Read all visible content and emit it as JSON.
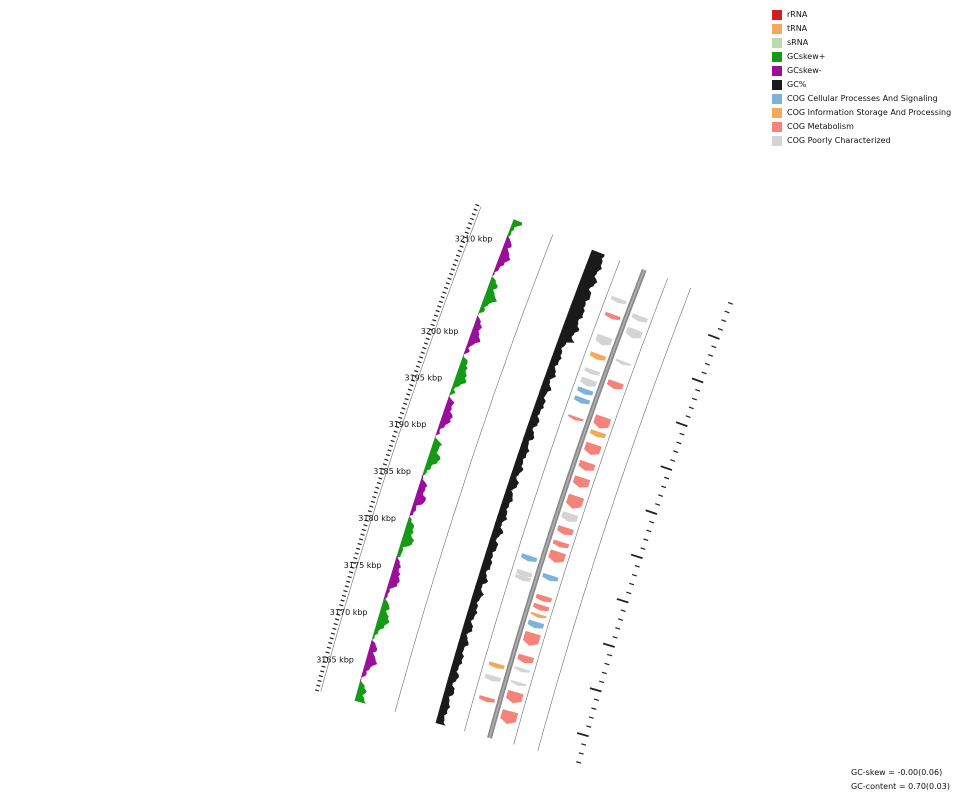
{
  "legend": {
    "items": [
      {
        "label": "rRNA",
        "color": "#d11f1f"
      },
      {
        "label": "tRNA",
        "color": "#f4a85a"
      },
      {
        "label": "sRNA",
        "color": "#b8dcb0"
      },
      {
        "label": "GCskew+",
        "color": "#159a15"
      },
      {
        "label": "GCskew-",
        "color": "#9a0e9a"
      },
      {
        "label": "GC%",
        "color": "#1a1a1a"
      },
      {
        "label": "COG Cellular Processes And Signaling",
        "color": "#7fb2d8"
      },
      {
        "label": "COG Information Storage And Processing",
        "color": "#f4a85a"
      },
      {
        "label": "COG Metabolism",
        "color": "#f4837a"
      },
      {
        "label": "COG Poorly Characterized",
        "color": "#d4d4d4"
      }
    ]
  },
  "scale": {
    "labels": [
      {
        "text": "3165 kbp",
        "kbp": 3165
      },
      {
        "text": "3170 kbp",
        "kbp": 3170
      },
      {
        "text": "3175 kbp",
        "kbp": 3175
      },
      {
        "text": "3180 kbp",
        "kbp": 3180
      },
      {
        "text": "3185 kbp",
        "kbp": 3185
      },
      {
        "text": "3190 kbp",
        "kbp": 3190
      },
      {
        "text": "3195 kbp",
        "kbp": 3195
      },
      {
        "text": "3200 kbp",
        "kbp": 3200
      },
      {
        "text": "3210 kbp",
        "kbp": 3210
      }
    ]
  },
  "stats": {
    "gc_skew": "GC-skew = -0.00(0.06)",
    "gc_content": "GC-content = 0.70(0.03)"
  },
  "features": {
    "forward": [
      {
        "kbp": 3209.0,
        "len": 0.6,
        "cog": "COG Poorly Characterized"
      },
      {
        "kbp": 3207.3,
        "len": 1.0,
        "cog": "COG Poorly Characterized"
      },
      {
        "kbp": 3204.0,
        "len": 0.4,
        "cog": "COG Poorly Characterized"
      },
      {
        "kbp": 3201.5,
        "len": 0.8,
        "cog": "COG Metabolism"
      },
      {
        "kbp": 3197.3,
        "len": 1.3,
        "cog": "COG Metabolism"
      },
      {
        "kbp": 3196.0,
        "len": 0.6,
        "cog": "COG Information Storage And Processing"
      },
      {
        "kbp": 3194.3,
        "len": 1.2,
        "cog": "COG Metabolism"
      },
      {
        "kbp": 3192.4,
        "len": 0.9,
        "cog": "COG Metabolism"
      },
      {
        "kbp": 3190.6,
        "len": 1.1,
        "cog": "COG Metabolism"
      },
      {
        "kbp": 3188.4,
        "len": 1.4,
        "cog": "COG Metabolism"
      },
      {
        "kbp": 3186.7,
        "len": 0.9,
        "cog": "COG Poorly Characterized"
      },
      {
        "kbp": 3185.2,
        "len": 0.8,
        "cog": "COG Metabolism"
      },
      {
        "kbp": 3183.7,
        "len": 0.6,
        "cog": "COG Metabolism"
      },
      {
        "kbp": 3182.3,
        "len": 1.2,
        "cog": "COG Metabolism"
      },
      {
        "kbp": 3180.0,
        "len": 0.6,
        "cog": "COG Cellular Processes And Signaling"
      },
      {
        "kbp": 3177.7,
        "len": 0.6,
        "cog": "COG Metabolism"
      },
      {
        "kbp": 3176.7,
        "len": 0.6,
        "cog": "COG Metabolism"
      },
      {
        "kbp": 3175.8,
        "len": 0.4,
        "cog": "COG Information Storage And Processing"
      },
      {
        "kbp": 3174.8,
        "len": 0.7,
        "cog": "COG Cellular Processes And Signaling"
      },
      {
        "kbp": 3173.2,
        "len": 1.4,
        "cog": "COG Metabolism"
      },
      {
        "kbp": 3171.0,
        "len": 0.8,
        "cog": "COG Metabolism"
      },
      {
        "kbp": 3169.8,
        "len": 0.4,
        "cog": "COG Poorly Characterized"
      },
      {
        "kbp": 3168.3,
        "len": 0.4,
        "cog": "COG Poorly Characterized"
      },
      {
        "kbp": 3166.8,
        "len": 1.2,
        "cog": "COG Metabolism"
      },
      {
        "kbp": 3164.6,
        "len": 1.4,
        "cog": "COG Metabolism"
      }
    ],
    "reverse": [
      {
        "kbp": 3210.0,
        "len": 0.5,
        "cog": "COG Poorly Characterized"
      },
      {
        "kbp": 3208.2,
        "len": 0.5,
        "cog": "COG Metabolism"
      },
      {
        "kbp": 3205.5,
        "len": 1.0,
        "cog": "COG Poorly Characterized"
      },
      {
        "kbp": 3203.7,
        "len": 0.6,
        "cog": "COG Information Storage And Processing"
      },
      {
        "kbp": 3202.0,
        "len": 0.5,
        "cog": "COG Poorly Characterized"
      },
      {
        "kbp": 3200.8,
        "len": 0.8,
        "cog": "COG Poorly Characterized"
      },
      {
        "kbp": 3199.8,
        "len": 0.6,
        "cog": "COG Cellular Processes And Signaling"
      },
      {
        "kbp": 3198.8,
        "len": 0.6,
        "cog": "COG Cellular Processes And Signaling"
      },
      {
        "kbp": 3196.8,
        "len": 0.4,
        "cog": "COG Metabolism"
      },
      {
        "kbp": 3181.3,
        "len": 0.6,
        "cog": "COG Cellular Processes And Signaling"
      },
      {
        "kbp": 3179.6,
        "len": 0.6,
        "cog": "COG Poorly Characterized"
      },
      {
        "kbp": 3179.1,
        "len": 0.5,
        "cog": "COG Poorly Characterized"
      },
      {
        "kbp": 3169.5,
        "len": 0.5,
        "cog": "COG Information Storage And Processing"
      },
      {
        "kbp": 3168.1,
        "len": 0.6,
        "cog": "COG Poorly Characterized"
      },
      {
        "kbp": 3165.8,
        "len": 0.5,
        "cog": "COG Metabolism"
      }
    ]
  }
}
